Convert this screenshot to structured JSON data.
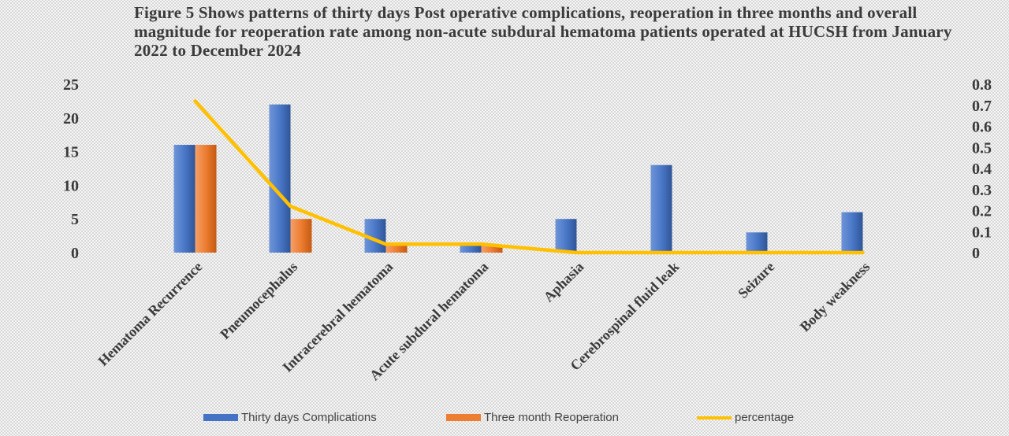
{
  "chart_data": {
    "type": "bar",
    "title": "Figure 5 Shows patterns of thirty days Post operative complications, reoperation in three months and overall magnitude for reoperation rate among non-acute subdural hematoma patients operated at HUCSH from January 2022 to December 2024",
    "categories": [
      "Hematoma Recurrence",
      "Pneumocephalus",
      "Intracerebral hematoma",
      "Acute subdural hematoma",
      "Aphasia",
      "Cerebrospinal fluid leak",
      "Seizure",
      "Body weakness"
    ],
    "series": [
      {
        "name": "Thirty days Complications",
        "type": "bar",
        "axis": "left",
        "color": "#4472c4",
        "values": [
          16,
          22,
          5,
          1,
          5,
          13,
          3,
          6
        ]
      },
      {
        "name": "Three month Reoperation",
        "type": "bar",
        "axis": "left",
        "color": "#ed7d31",
        "values": [
          16,
          5,
          1,
          1,
          0,
          0,
          0,
          0
        ]
      },
      {
        "name": "percentage",
        "type": "line",
        "axis": "right",
        "color": "#ffc000",
        "values": [
          0.72,
          0.22,
          0.04,
          0.04,
          0,
          0,
          0,
          0
        ]
      }
    ],
    "y_left": {
      "min": 0,
      "max": 25,
      "ticks": [
        "0",
        "5",
        "10",
        "15",
        "20",
        "25"
      ]
    },
    "y_right": {
      "min": 0,
      "max": 0.8,
      "ticks": [
        "0",
        "0.1",
        "0.2",
        "0.3",
        "0.4",
        "0.5",
        "0.6",
        "0.7",
        "0.8"
      ]
    },
    "grid": false,
    "legend_position": "bottom"
  }
}
